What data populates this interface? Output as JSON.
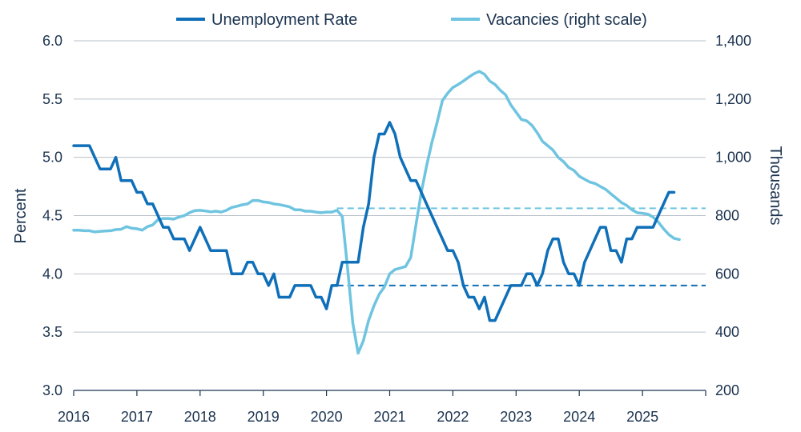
{
  "chart_data": {
    "type": "line",
    "title": "",
    "legend": {
      "placement": "top",
      "entries": [
        "Unemployment Rate",
        "Vacancies (right scale)"
      ]
    },
    "x_axis": {
      "type": "date",
      "range": [
        "2016-01",
        "2026-01"
      ],
      "tick_labels": [
        "2016",
        "2017",
        "2018",
        "2019",
        "2020",
        "2021",
        "2022",
        "2023",
        "2024",
        "2025"
      ]
    },
    "y_left": {
      "label": "Percent",
      "range": [
        3.0,
        6.0
      ],
      "tick_labels": [
        "3.0",
        "3.5",
        "4.0",
        "4.5",
        "5.0",
        "5.5",
        "6.0"
      ],
      "gridlines": true
    },
    "y_right": {
      "label": "Thousands",
      "range": [
        200,
        1400
      ],
      "tick_labels": [
        "200",
        "400",
        "600",
        "800",
        "1,000",
        "1,200",
        "1,400"
      ]
    },
    "series": [
      {
        "name": "Unemployment Rate",
        "axis": "left",
        "color": "#0f6fb8",
        "points": [
          [
            "2016-01",
            5.1
          ],
          [
            "2016-02",
            5.1
          ],
          [
            "2016-03",
            5.1
          ],
          [
            "2016-04",
            5.1
          ],
          [
            "2016-05",
            5.0
          ],
          [
            "2016-06",
            4.9
          ],
          [
            "2016-07",
            4.9
          ],
          [
            "2016-08",
            4.9
          ],
          [
            "2016-09",
            5.0
          ],
          [
            "2016-10",
            4.8
          ],
          [
            "2016-11",
            4.8
          ],
          [
            "2016-12",
            4.8
          ],
          [
            "2017-01",
            4.7
          ],
          [
            "2017-02",
            4.7
          ],
          [
            "2017-03",
            4.6
          ],
          [
            "2017-04",
            4.6
          ],
          [
            "2017-05",
            4.5
          ],
          [
            "2017-06",
            4.4
          ],
          [
            "2017-07",
            4.4
          ],
          [
            "2017-08",
            4.3
          ],
          [
            "2017-09",
            4.3
          ],
          [
            "2017-10",
            4.3
          ],
          [
            "2017-11",
            4.2
          ],
          [
            "2017-12",
            4.3
          ],
          [
            "2018-01",
            4.4
          ],
          [
            "2018-02",
            4.3
          ],
          [
            "2018-03",
            4.2
          ],
          [
            "2018-04",
            4.2
          ],
          [
            "2018-05",
            4.2
          ],
          [
            "2018-06",
            4.2
          ],
          [
            "2018-07",
            4.0
          ],
          [
            "2018-08",
            4.0
          ],
          [
            "2018-09",
            4.0
          ],
          [
            "2018-10",
            4.1
          ],
          [
            "2018-11",
            4.1
          ],
          [
            "2018-12",
            4.0
          ],
          [
            "2019-01",
            4.0
          ],
          [
            "2019-02",
            3.9
          ],
          [
            "2019-03",
            4.0
          ],
          [
            "2019-04",
            3.8
          ],
          [
            "2019-05",
            3.8
          ],
          [
            "2019-06",
            3.8
          ],
          [
            "2019-07",
            3.9
          ],
          [
            "2019-08",
            3.9
          ],
          [
            "2019-09",
            3.9
          ],
          [
            "2019-10",
            3.9
          ],
          [
            "2019-11",
            3.8
          ],
          [
            "2019-12",
            3.8
          ],
          [
            "2020-01",
            3.7
          ],
          [
            "2020-02",
            3.9
          ],
          [
            "2020-03",
            3.9
          ],
          [
            "2020-04",
            4.1
          ],
          [
            "2020-05",
            4.1
          ],
          [
            "2020-06",
            4.1
          ],
          [
            "2020-07",
            4.1
          ],
          [
            "2020-08",
            4.4
          ],
          [
            "2020-09",
            4.6
          ],
          [
            "2020-10",
            5.0
          ],
          [
            "2020-11",
            5.2
          ],
          [
            "2020-12",
            5.2
          ],
          [
            "2021-01",
            5.3
          ],
          [
            "2021-02",
            5.2
          ],
          [
            "2021-03",
            5.0
          ],
          [
            "2021-04",
            4.9
          ],
          [
            "2021-05",
            4.8
          ],
          [
            "2021-06",
            4.8
          ],
          [
            "2021-07",
            4.7
          ],
          [
            "2021-08",
            4.6
          ],
          [
            "2021-09",
            4.5
          ],
          [
            "2021-10",
            4.4
          ],
          [
            "2021-11",
            4.3
          ],
          [
            "2021-12",
            4.2
          ],
          [
            "2022-01",
            4.2
          ],
          [
            "2022-02",
            4.1
          ],
          [
            "2022-03",
            3.9
          ],
          [
            "2022-04",
            3.8
          ],
          [
            "2022-05",
            3.8
          ],
          [
            "2022-06",
            3.7
          ],
          [
            "2022-07",
            3.8
          ],
          [
            "2022-08",
            3.6
          ],
          [
            "2022-09",
            3.6
          ],
          [
            "2022-10",
            3.7
          ],
          [
            "2022-11",
            3.8
          ],
          [
            "2022-12",
            3.9
          ],
          [
            "2023-01",
            3.9
          ],
          [
            "2023-02",
            3.9
          ],
          [
            "2023-03",
            4.0
          ],
          [
            "2023-04",
            4.0
          ],
          [
            "2023-05",
            3.9
          ],
          [
            "2023-06",
            4.0
          ],
          [
            "2023-07",
            4.2
          ],
          [
            "2023-08",
            4.3
          ],
          [
            "2023-09",
            4.3
          ],
          [
            "2023-10",
            4.1
          ],
          [
            "2023-11",
            4.0
          ],
          [
            "2023-12",
            4.0
          ],
          [
            "2024-01",
            3.9
          ],
          [
            "2024-02",
            4.1
          ],
          [
            "2024-03",
            4.2
          ],
          [
            "2024-04",
            4.3
          ],
          [
            "2024-05",
            4.4
          ],
          [
            "2024-06",
            4.4
          ],
          [
            "2024-07",
            4.2
          ],
          [
            "2024-08",
            4.2
          ],
          [
            "2024-09",
            4.1
          ],
          [
            "2024-10",
            4.3
          ],
          [
            "2024-11",
            4.3
          ],
          [
            "2024-12",
            4.4
          ],
          [
            "2025-01",
            4.4
          ],
          [
            "2025-02",
            4.4
          ],
          [
            "2025-03",
            4.4
          ],
          [
            "2025-04",
            4.5
          ],
          [
            "2025-05",
            4.6
          ],
          [
            "2025-06",
            4.7
          ],
          [
            "2025-07",
            4.7
          ]
        ]
      },
      {
        "name": "Vacancies (right scale)",
        "axis": "right",
        "color": "#6fc4e0",
        "points": [
          [
            "2016-01",
            750
          ],
          [
            "2016-02",
            750
          ],
          [
            "2016-03",
            748
          ],
          [
            "2016-04",
            748
          ],
          [
            "2016-05",
            744
          ],
          [
            "2016-06",
            746
          ],
          [
            "2016-07",
            747
          ],
          [
            "2016-08",
            748
          ],
          [
            "2016-09",
            752
          ],
          [
            "2016-10",
            753
          ],
          [
            "2016-11",
            762
          ],
          [
            "2016-12",
            757
          ],
          [
            "2017-01",
            755
          ],
          [
            "2017-02",
            750
          ],
          [
            "2017-03",
            762
          ],
          [
            "2017-04",
            768
          ],
          [
            "2017-05",
            786
          ],
          [
            "2017-06",
            790
          ],
          [
            "2017-07",
            790
          ],
          [
            "2017-08",
            788
          ],
          [
            "2017-09",
            795
          ],
          [
            "2017-10",
            800
          ],
          [
            "2017-11",
            810
          ],
          [
            "2017-12",
            817
          ],
          [
            "2018-01",
            818
          ],
          [
            "2018-02",
            816
          ],
          [
            "2018-03",
            813
          ],
          [
            "2018-04",
            815
          ],
          [
            "2018-05",
            812
          ],
          [
            "2018-06",
            818
          ],
          [
            "2018-07",
            828
          ],
          [
            "2018-08",
            832
          ],
          [
            "2018-09",
            837
          ],
          [
            "2018-10",
            840
          ],
          [
            "2018-11",
            852
          ],
          [
            "2018-12",
            852
          ],
          [
            "2019-01",
            847
          ],
          [
            "2019-02",
            845
          ],
          [
            "2019-03",
            840
          ],
          [
            "2019-04",
            838
          ],
          [
            "2019-05",
            834
          ],
          [
            "2019-06",
            830
          ],
          [
            "2019-07",
            820
          ],
          [
            "2019-08",
            820
          ],
          [
            "2019-09",
            815
          ],
          [
            "2019-10",
            815
          ],
          [
            "2019-11",
            812
          ],
          [
            "2019-12",
            810
          ],
          [
            "2020-01",
            812
          ],
          [
            "2020-02",
            812
          ],
          [
            "2020-03",
            818
          ],
          [
            "2020-04",
            797
          ],
          [
            "2020-05",
            620
          ],
          [
            "2020-06",
            430
          ],
          [
            "2020-07",
            328
          ],
          [
            "2020-08",
            370
          ],
          [
            "2020-09",
            440
          ],
          [
            "2020-10",
            490
          ],
          [
            "2020-11",
            530
          ],
          [
            "2020-12",
            555
          ],
          [
            "2021-01",
            600
          ],
          [
            "2021-02",
            615
          ],
          [
            "2021-03",
            620
          ],
          [
            "2021-04",
            625
          ],
          [
            "2021-05",
            656
          ],
          [
            "2021-06",
            770
          ],
          [
            "2021-07",
            880
          ],
          [
            "2021-08",
            970
          ],
          [
            "2021-09",
            1050
          ],
          [
            "2021-10",
            1120
          ],
          [
            "2021-11",
            1195
          ],
          [
            "2021-12",
            1220
          ],
          [
            "2022-01",
            1240
          ],
          [
            "2022-02",
            1250
          ],
          [
            "2022-03",
            1262
          ],
          [
            "2022-04",
            1275
          ],
          [
            "2022-05",
            1287
          ],
          [
            "2022-06",
            1295
          ],
          [
            "2022-07",
            1285
          ],
          [
            "2022-08",
            1262
          ],
          [
            "2022-09",
            1250
          ],
          [
            "2022-10",
            1230
          ],
          [
            "2022-11",
            1215
          ],
          [
            "2022-12",
            1180
          ],
          [
            "2023-01",
            1155
          ],
          [
            "2023-02",
            1130
          ],
          [
            "2023-03",
            1125
          ],
          [
            "2023-04",
            1110
          ],
          [
            "2023-05",
            1085
          ],
          [
            "2023-06",
            1055
          ],
          [
            "2023-07",
            1040
          ],
          [
            "2023-08",
            1025
          ],
          [
            "2023-09",
            1000
          ],
          [
            "2023-10",
            985
          ],
          [
            "2023-11",
            965
          ],
          [
            "2023-12",
            955
          ],
          [
            "2024-01",
            935
          ],
          [
            "2024-02",
            925
          ],
          [
            "2024-03",
            915
          ],
          [
            "2024-04",
            910
          ],
          [
            "2024-05",
            900
          ],
          [
            "2024-06",
            890
          ],
          [
            "2024-07",
            875
          ],
          [
            "2024-08",
            860
          ],
          [
            "2024-09",
            845
          ],
          [
            "2024-10",
            835
          ],
          [
            "2024-11",
            820
          ],
          [
            "2024-12",
            810
          ],
          [
            "2025-01",
            808
          ],
          [
            "2025-02",
            805
          ],
          [
            "2025-03",
            795
          ],
          [
            "2025-04",
            778
          ],
          [
            "2025-05",
            755
          ],
          [
            "2025-06",
            735
          ],
          [
            "2025-07",
            722
          ],
          [
            "2025-08",
            718
          ]
        ]
      }
    ],
    "reference_lines": [
      {
        "axis": "left",
        "value": 3.9,
        "from": "2020-03",
        "color": "#0f6fb8",
        "style": "dashed"
      },
      {
        "axis": "right",
        "value": 825,
        "from": "2020-03",
        "color": "#6fc4e0",
        "style": "dashed"
      }
    ]
  }
}
